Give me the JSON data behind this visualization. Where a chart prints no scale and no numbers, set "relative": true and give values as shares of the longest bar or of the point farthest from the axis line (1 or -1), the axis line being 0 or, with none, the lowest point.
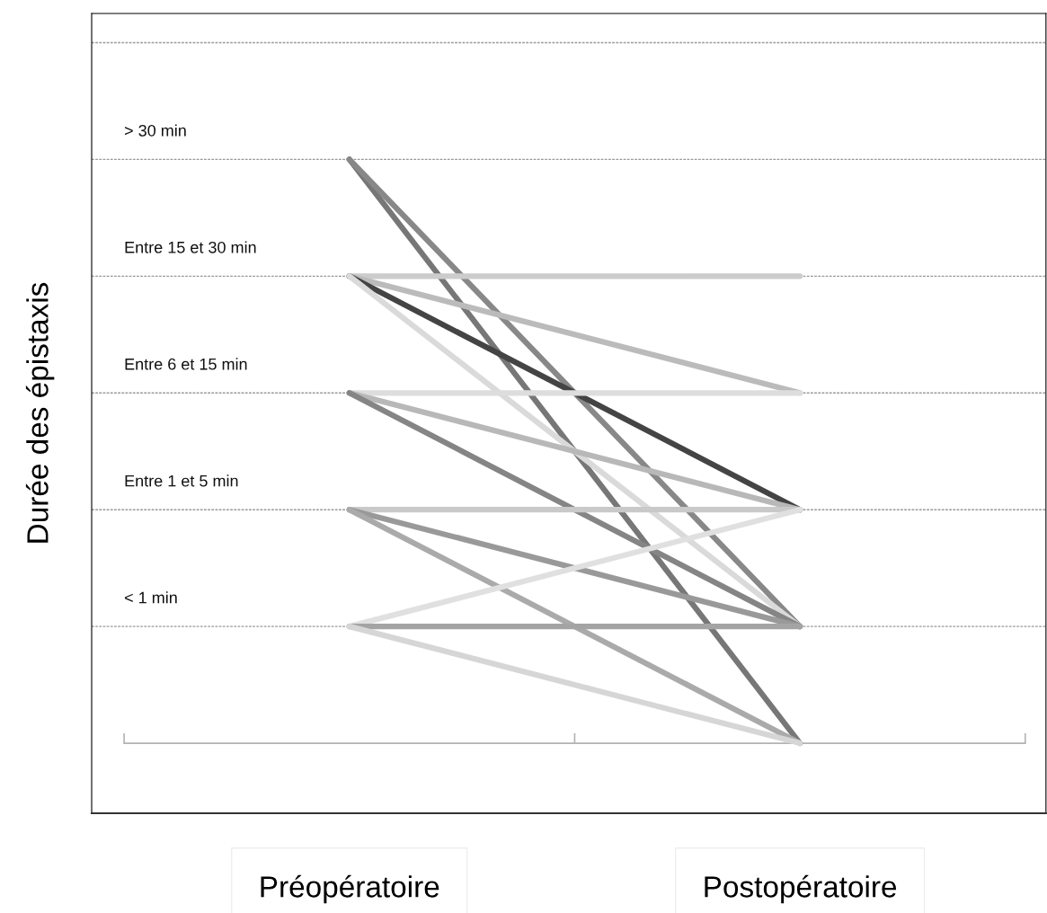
{
  "chart_data": {
    "type": "line",
    "ylabel": "Durée des épistaxis",
    "categories": [
      "Préopératoire",
      "Postopératoire"
    ],
    "relative": true,
    "ref_lines": [
      {
        "axis": "y",
        "value": 0.2,
        "label": "< 1 min",
        "color": "#999999",
        "line_style": "dashed"
      },
      {
        "axis": "y",
        "value": 0.4,
        "label": "Entre 1 et 5 min",
        "color": "#999999",
        "line_style": "dashed"
      },
      {
        "axis": "y",
        "value": 0.6,
        "label": "Entre 6 et 15 min",
        "color": "#999999",
        "line_style": "dashed"
      },
      {
        "axis": "y",
        "value": 0.8,
        "label": "Entre 15 et 30 min",
        "color": "#999999",
        "line_style": "dashed"
      },
      {
        "axis": "y",
        "value": 1.0,
        "label": "> 30 min",
        "color": "#999999",
        "line_style": "dashed"
      },
      {
        "axis": "y",
        "value": 1.2,
        "label": null,
        "color": "#999999",
        "line_style": "dashed"
      }
    ],
    "marker": "none",
    "line_style": "solid",
    "series": [
      {
        "color": "#777777",
        "values": [
          1.0,
          0
        ]
      },
      {
        "color": "#888888",
        "values": [
          1.0,
          0.2
        ]
      },
      {
        "color": "#cccccc",
        "values": [
          0.8,
          0.8
        ]
      },
      {
        "color": "#bbbbbb",
        "values": [
          0.8,
          0.6
        ]
      },
      {
        "color": "#444444",
        "values": [
          0.8,
          0.4
        ]
      },
      {
        "color": "#dadada",
        "values": [
          0.8,
          0.2
        ]
      },
      {
        "color": "#dddddd",
        "values": [
          0.6,
          0.6
        ]
      },
      {
        "color": "#b8b8b8",
        "values": [
          0.6,
          0.4
        ]
      },
      {
        "color": "#858585",
        "values": [
          0.6,
          0.2
        ]
      },
      {
        "color": "#c9c9c9",
        "values": [
          0.4,
          0.4
        ]
      },
      {
        "color": "#999999",
        "values": [
          0.4,
          0.2
        ]
      },
      {
        "color": "#aaaaaa",
        "values": [
          0.4,
          0
        ]
      },
      {
        "color": "#e0e0e0",
        "values": [
          0.2,
          0.4
        ]
      },
      {
        "color": "#a4a4a4",
        "values": [
          0.2,
          0.2
        ]
      },
      {
        "color": "#d6d6d6",
        "values": [
          0.2,
          0
        ]
      }
    ]
  }
}
